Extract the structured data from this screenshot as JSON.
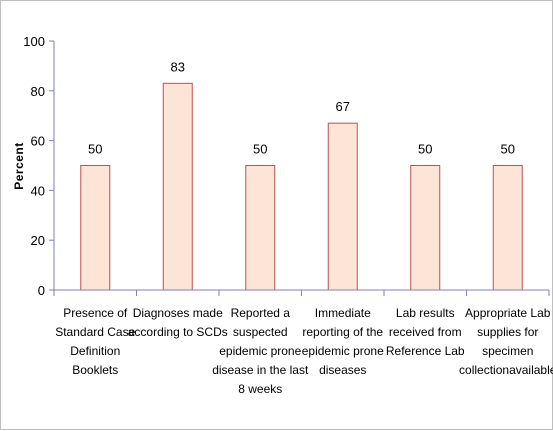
{
  "chart_data": {
    "type": "bar",
    "title": "",
    "xlabel": "",
    "ylabel": "Percent",
    "ylim": [
      0,
      100
    ],
    "yticks": [
      0,
      20,
      40,
      60,
      80,
      100
    ],
    "grid": false,
    "categories": [
      "Presence of Standard Case Definition Booklets",
      "Diagnoses made according to SCDs",
      "Reported a suspected epidemic prone disease in the last 8 weeks",
      "Immediate reporting of the epidemic prone diseases",
      "Lab results received from Reference Lab",
      "Appropriate Lab supplies for specimen collectionavailable"
    ],
    "category_lines": [
      [
        "Presence of",
        "Standard Case",
        "Definition",
        "Booklets"
      ],
      [
        "Diagnoses made",
        "according to SCDs"
      ],
      [
        "Reported a",
        "suspected",
        "epidemic prone",
        "disease in the last",
        "8 weeks"
      ],
      [
        "Immediate",
        "reporting of the",
        "epidemic prone",
        "diseases"
      ],
      [
        "Lab results",
        "received from",
        "Reference Lab"
      ],
      [
        "Appropriate Lab",
        "supplies for",
        "specimen",
        "collectionavailable"
      ]
    ],
    "values": [
      50,
      83,
      50,
      67,
      50,
      50
    ],
    "data_labels": [
      "50",
      "83",
      "50",
      "67",
      "50",
      "50"
    ],
    "colors": {
      "bar_fill": "#fce4d6",
      "bar_stroke": "#c0504d",
      "axis": "#7f7fbf"
    }
  }
}
